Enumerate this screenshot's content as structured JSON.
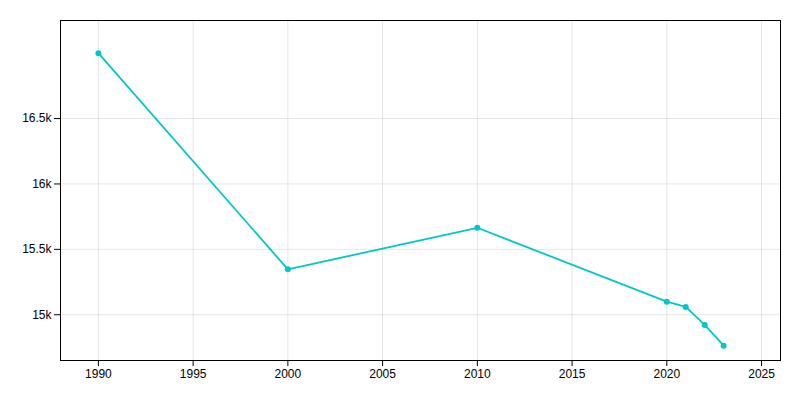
{
  "chart_data": {
    "type": "line",
    "x": [
      1990,
      2000,
      2010,
      2020,
      2021,
      2022,
      2023
    ],
    "values": [
      17000,
      15347,
      15665,
      15100,
      15060,
      14922,
      14763
    ],
    "color": "#00c8c8",
    "marker": "circle",
    "xlim": [
      1988,
      2026
    ],
    "xticks": [
      1990,
      1995,
      2000,
      2005,
      2010,
      2015,
      2020,
      2025
    ],
    "ylim": [
      14650,
      17250
    ],
    "yticks": [
      {
        "value": 15000,
        "label": "15k"
      },
      {
        "value": 15500,
        "label": "15.5k"
      },
      {
        "value": 16000,
        "label": "16k"
      },
      {
        "value": 16500,
        "label": "16.5k"
      }
    ],
    "grid": true
  }
}
